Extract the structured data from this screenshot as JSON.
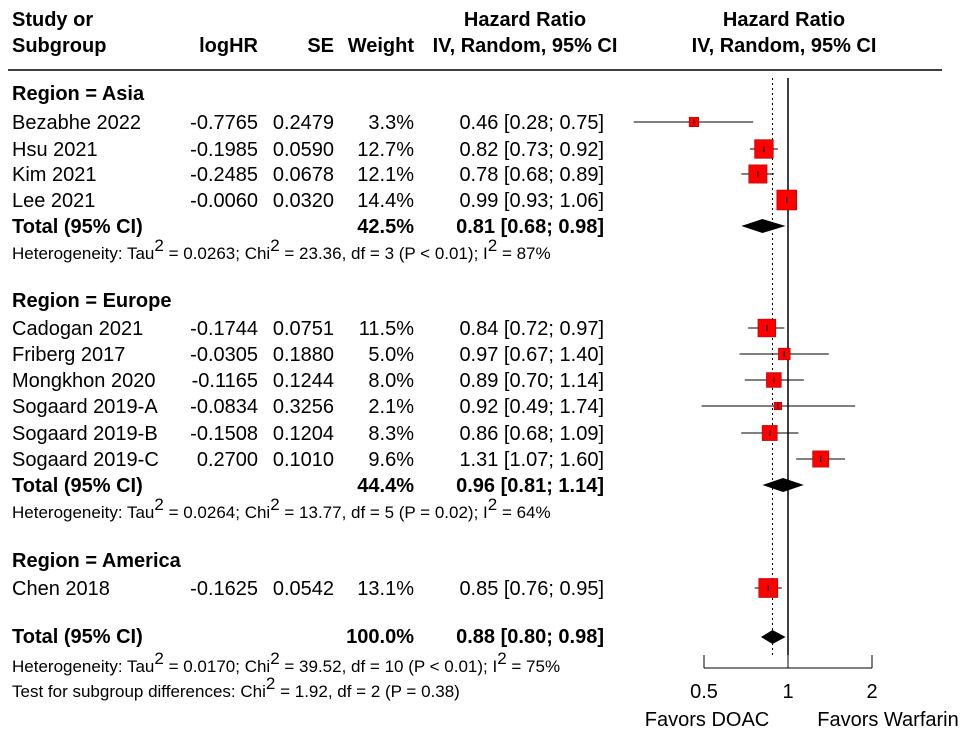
{
  "chart_data": {
    "type": "forest",
    "header": {
      "study_line1": "Study or",
      "study_line2": "Subgroup",
      "loghr": "logHR",
      "se": "SE",
      "weight": "Weight",
      "hr_line1": "Hazard Ratio",
      "hr_line2": "IV, Random, 95% CI",
      "plot_line1": "Hazard Ratio",
      "plot_line2": "IV, Random, 95% CI"
    },
    "x_scale": "log",
    "x_ticks": [
      0.5,
      1,
      2
    ],
    "x_tick_labels": [
      "0.5",
      "1",
      "2"
    ],
    "reference_line": 1,
    "pooled_line": 0.88,
    "favors_left": "Favors DOAC",
    "favors_right": "Favors Warfarin",
    "subgroups": [
      {
        "title": "Region = Asia",
        "studies": [
          {
            "name": "Bezabhe 2022",
            "loghr": "-0.7765",
            "se": "0.2479",
            "weight": "3.3%",
            "hr_text": "0.46 [0.28; 0.75]",
            "hr": 0.46,
            "lo": 0.28,
            "hi": 0.75,
            "w": 3.3
          },
          {
            "name": "Hsu 2021",
            "loghr": "-0.1985",
            "se": "0.0590",
            "weight": "12.7%",
            "hr_text": "0.82 [0.73; 0.92]",
            "hr": 0.82,
            "lo": 0.73,
            "hi": 0.92,
            "w": 12.7
          },
          {
            "name": "Kim 2021",
            "loghr": "-0.2485",
            "se": "0.0678",
            "weight": "12.1%",
            "hr_text": "0.78 [0.68; 0.89]",
            "hr": 0.78,
            "lo": 0.68,
            "hi": 0.89,
            "w": 12.1
          },
          {
            "name": "Lee 2021",
            "loghr": "-0.0060",
            "se": "0.0320",
            "weight": "14.4%",
            "hr_text": "0.99 [0.93; 1.06]",
            "hr": 0.99,
            "lo": 0.93,
            "hi": 1.06,
            "w": 14.4
          }
        ],
        "total": {
          "label": "Total (95% CI)",
          "weight": "42.5%",
          "hr_text": "0.81 [0.68; 0.98]",
          "hr": 0.81,
          "lo": 0.68,
          "hi": 0.98
        },
        "het": {
          "a": "Heterogeneity: Tau",
          "b": " = 0.0263; Chi",
          "c": " = 23.36, df = 3 (P < 0.01); I",
          "d": " = 87%"
        }
      },
      {
        "title": "Region = Europe",
        "studies": [
          {
            "name": "Cadogan 2021",
            "loghr": "-0.1744",
            "se": "0.0751",
            "weight": "11.5%",
            "hr_text": "0.84 [0.72; 0.97]",
            "hr": 0.84,
            "lo": 0.72,
            "hi": 0.97,
            "w": 11.5
          },
          {
            "name": "Friberg 2017",
            "loghr": "-0.0305",
            "se": "0.1880",
            "weight": "5.0%",
            "hr_text": "0.97 [0.67; 1.40]",
            "hr": 0.97,
            "lo": 0.67,
            "hi": 1.4,
            "w": 5.0
          },
          {
            "name": "Mongkhon 2020",
            "loghr": "-0.1165",
            "se": "0.1244",
            "weight": "8.0%",
            "hr_text": "0.89 [0.70; 1.14]",
            "hr": 0.89,
            "lo": 0.7,
            "hi": 1.14,
            "w": 8.0
          },
          {
            "name": "Sogaard 2019-A",
            "loghr": "-0.0834",
            "se": "0.3256",
            "weight": "2.1%",
            "hr_text": "0.92 [0.49; 1.74]",
            "hr": 0.92,
            "lo": 0.49,
            "hi": 1.74,
            "w": 2.1
          },
          {
            "name": "Sogaard 2019-B",
            "loghr": "-0.1508",
            "se": "0.1204",
            "weight": "8.3%",
            "hr_text": "0.86 [0.68; 1.09]",
            "hr": 0.86,
            "lo": 0.68,
            "hi": 1.09,
            "w": 8.3
          },
          {
            "name": "Sogaard 2019-C",
            "loghr": "0.2700",
            "se": "0.1010",
            "weight": "9.6%",
            "hr_text": "1.31 [1.07; 1.60]",
            "hr": 1.31,
            "lo": 1.07,
            "hi": 1.6,
            "w": 9.6
          }
        ],
        "total": {
          "label": "Total (95% CI)",
          "weight": "44.4%",
          "hr_text": "0.96 [0.81; 1.14]",
          "hr": 0.96,
          "lo": 0.81,
          "hi": 1.14
        },
        "het": {
          "a": "Heterogeneity: Tau",
          "b": " = 0.0264; Chi",
          "c": " = 13.77, df = 5 (P = 0.02); I",
          "d": " = 64%"
        }
      },
      {
        "title": "Region = America",
        "studies": [
          {
            "name": "Chen 2018",
            "loghr": "-0.1625",
            "se": "0.0542",
            "weight": "13.1%",
            "hr_text": "0.85 [0.76; 0.95]",
            "hr": 0.85,
            "lo": 0.76,
            "hi": 0.95,
            "w": 13.1
          }
        ],
        "total": null,
        "het": null
      }
    ],
    "overall": {
      "label": "Total (95% CI)",
      "weight": "100.0%",
      "hr_text": "0.88 [0.80; 0.98]",
      "hr": 0.88,
      "lo": 0.8,
      "hi": 0.98,
      "het": {
        "a": "Heterogeneity: Tau",
        "b": " = 0.0170; Chi",
        "c": " = 39.52, df = 10 (P < 0.01); I",
        "d": " = 75%"
      },
      "subgroup_test": "Test for subgroup differences: Chi",
      "subgroup_test_rest": " = 1.92, df = 2 (P = 0.38)"
    },
    "superscript": "2",
    "colors": {
      "marker": "#ff0000",
      "marker_edge": "#8b0000",
      "diamond": "#000000",
      "line": "#000000"
    }
  }
}
